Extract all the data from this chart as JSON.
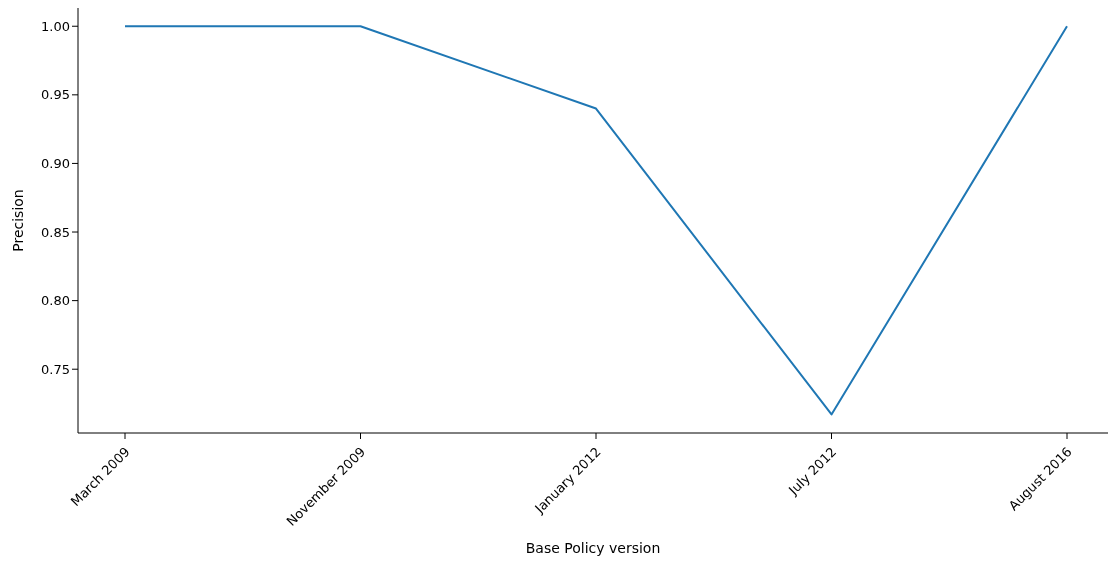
{
  "chart_data": {
    "type": "line",
    "xlabel": "Base Policy version",
    "ylabel": "Precision",
    "categories": [
      "March 2009",
      "November 2009",
      "January 2012",
      "July 2012",
      "August 2016"
    ],
    "series": [
      {
        "color": "#1f77b4",
        "values": [
          1.0,
          1.0,
          0.94,
          0.717,
          1.0
        ]
      }
    ],
    "ylim": [
      0.7035,
      1.0133
    ],
    "yticks": [
      0.75,
      {
        "value": 0.8,
        "label": "0.80"
      },
      0.85,
      {
        "value": 0.9,
        "label": "0.90"
      },
      0.95,
      {
        "value": 1.0,
        "label": "1.00"
      }
    ],
    "grid": false,
    "legend": false,
    "marker": "none",
    "line_style": "solid"
  }
}
